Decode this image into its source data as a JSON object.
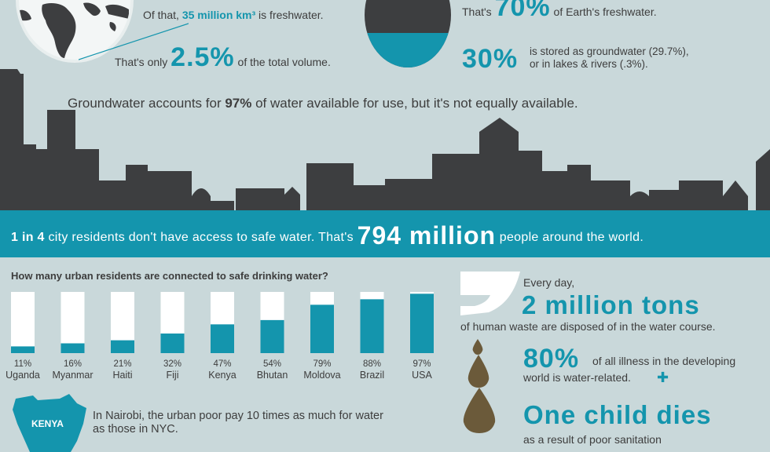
{
  "freshwater": {
    "prefix": "Of that, ",
    "amount": "35 million km³",
    "suffix": " is freshwater.",
    "total_prefix": "That's only ",
    "total_pct": "2.5%",
    "total_suffix": " of the total volume."
  },
  "icecaps": {
    "prefix": "That's ",
    "pct": "70%",
    "suffix": " of Earth's freshwater.",
    "ground_pct": "30%",
    "ground_line1": "is stored as groundwater (29.7%),",
    "ground_line2": "or in lakes & rivers (.3%)."
  },
  "groundwater": {
    "prefix": "Groundwater accounts for ",
    "pct": "97%",
    "suffix": " of water available for use, but it's not equally available."
  },
  "banner": {
    "prefix_bold": "1 in 4",
    "middle": " city residents don't have access to safe water. That's ",
    "big": "794 million",
    "suffix": " people around the world."
  },
  "chart_data": {
    "type": "bar",
    "title": "How many urban residents are connected to safe drinking water?",
    "categories": [
      "Uganda",
      "Myanmar",
      "Haiti",
      "Fiji",
      "Kenya",
      "Bhutan",
      "Moldova",
      "Brazil",
      "USA"
    ],
    "values": [
      11,
      16,
      21,
      32,
      47,
      54,
      79,
      88,
      97
    ],
    "value_labels": [
      "11%",
      "16%",
      "21%",
      "32%",
      "47%",
      "54%",
      "79%",
      "88%",
      "97%"
    ],
    "ylim": [
      0,
      100
    ],
    "colors": {
      "fill": "#1495ad",
      "track": "#ffffff"
    }
  },
  "kenya": {
    "label": "KENYA",
    "line1": "In Nairobi, the urban poor pay 10 times as much for water",
    "line2": "as those in NYC."
  },
  "waste": {
    "everyday": "Every day,",
    "amount": "2 million tons",
    "line": "of human waste are disposed of in the water course."
  },
  "illness": {
    "pct": "80%",
    "line1": "of all illness in the developing",
    "line2": "world is water-related.",
    "icon": "plus-icon"
  },
  "child": {
    "headline": "One child dies",
    "line": "as a result of poor sanitation"
  },
  "colors": {
    "teal": "#1495ad",
    "dark": "#3d3e40",
    "background": "#c9d8da",
    "drop": "#6b5a3a"
  }
}
